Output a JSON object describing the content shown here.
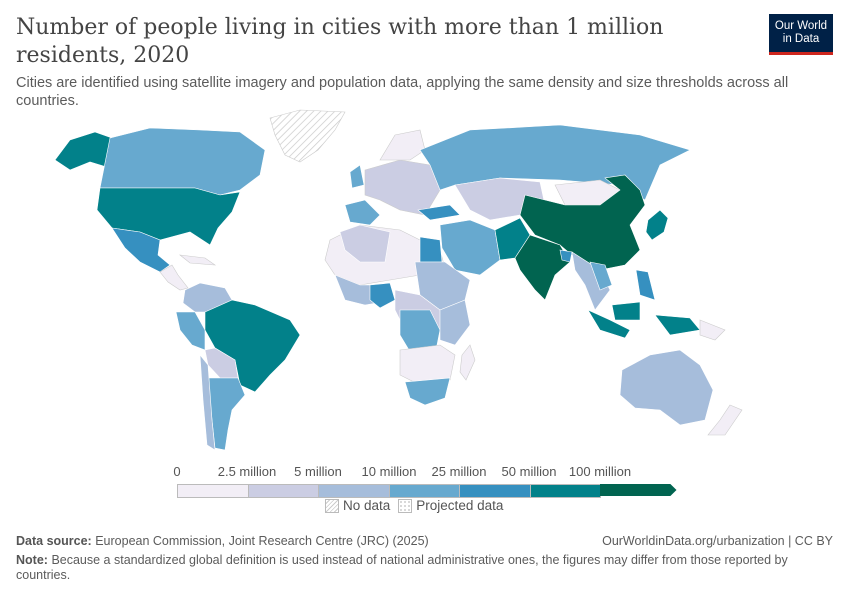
{
  "header": {
    "title": "Number of people living in cities with more than 1 million residents, 2020",
    "subtitle": "Cities are identified using satellite imagery and population data, applying the same density and size thresholds across all countries.",
    "logo": "Our World in Data"
  },
  "legend": {
    "ticks": [
      "0",
      "2.5 million",
      "5 million",
      "10 million",
      "25 million",
      "50 million",
      "100 million"
    ],
    "colors": [
      "#f2eef6",
      "#cbcde3",
      "#a6bddb",
      "#67a9cf",
      "#3690c0",
      "#02818a",
      "#016450"
    ],
    "no_data": "No data",
    "projected": "Projected data"
  },
  "footer": {
    "source_label": "Data source:",
    "source": "European Commission, Joint Research Centre (JRC) (2025)",
    "url": "OurWorldinData.org/urbanization | CC BY",
    "note_label": "Note:",
    "note": "Because a standardized global definition is used instead of national administrative ones, the figures may differ from those reported by countries."
  }
}
